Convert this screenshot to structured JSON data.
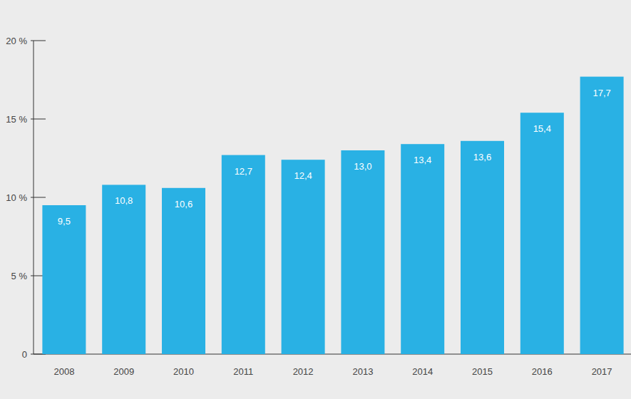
{
  "chart_data": {
    "type": "bar",
    "categories": [
      "2008",
      "2009",
      "2010",
      "2011",
      "2012",
      "2013",
      "2014",
      "2015",
      "2016",
      "2017"
    ],
    "values": [
      9.5,
      10.8,
      10.6,
      12.7,
      12.4,
      13.0,
      13.4,
      13.6,
      15.4,
      17.7
    ],
    "value_labels": [
      "9,5",
      "10,8",
      "10,6",
      "12,7",
      "12,4",
      "13,0",
      "13,4",
      "13,6",
      "15,4",
      "17,7"
    ],
    "color": "#29b1e4",
    "ylim": [
      0,
      20
    ],
    "yticks": [
      0,
      {
        "value": 5,
        "label": "5 %"
      },
      {
        "value": 10,
        "label": "10 %"
      },
      {
        "value": 15,
        "label": "15 %"
      },
      {
        "value": 20,
        "label": "20 %"
      }
    ],
    "grid": false,
    "data_labels": true
  }
}
